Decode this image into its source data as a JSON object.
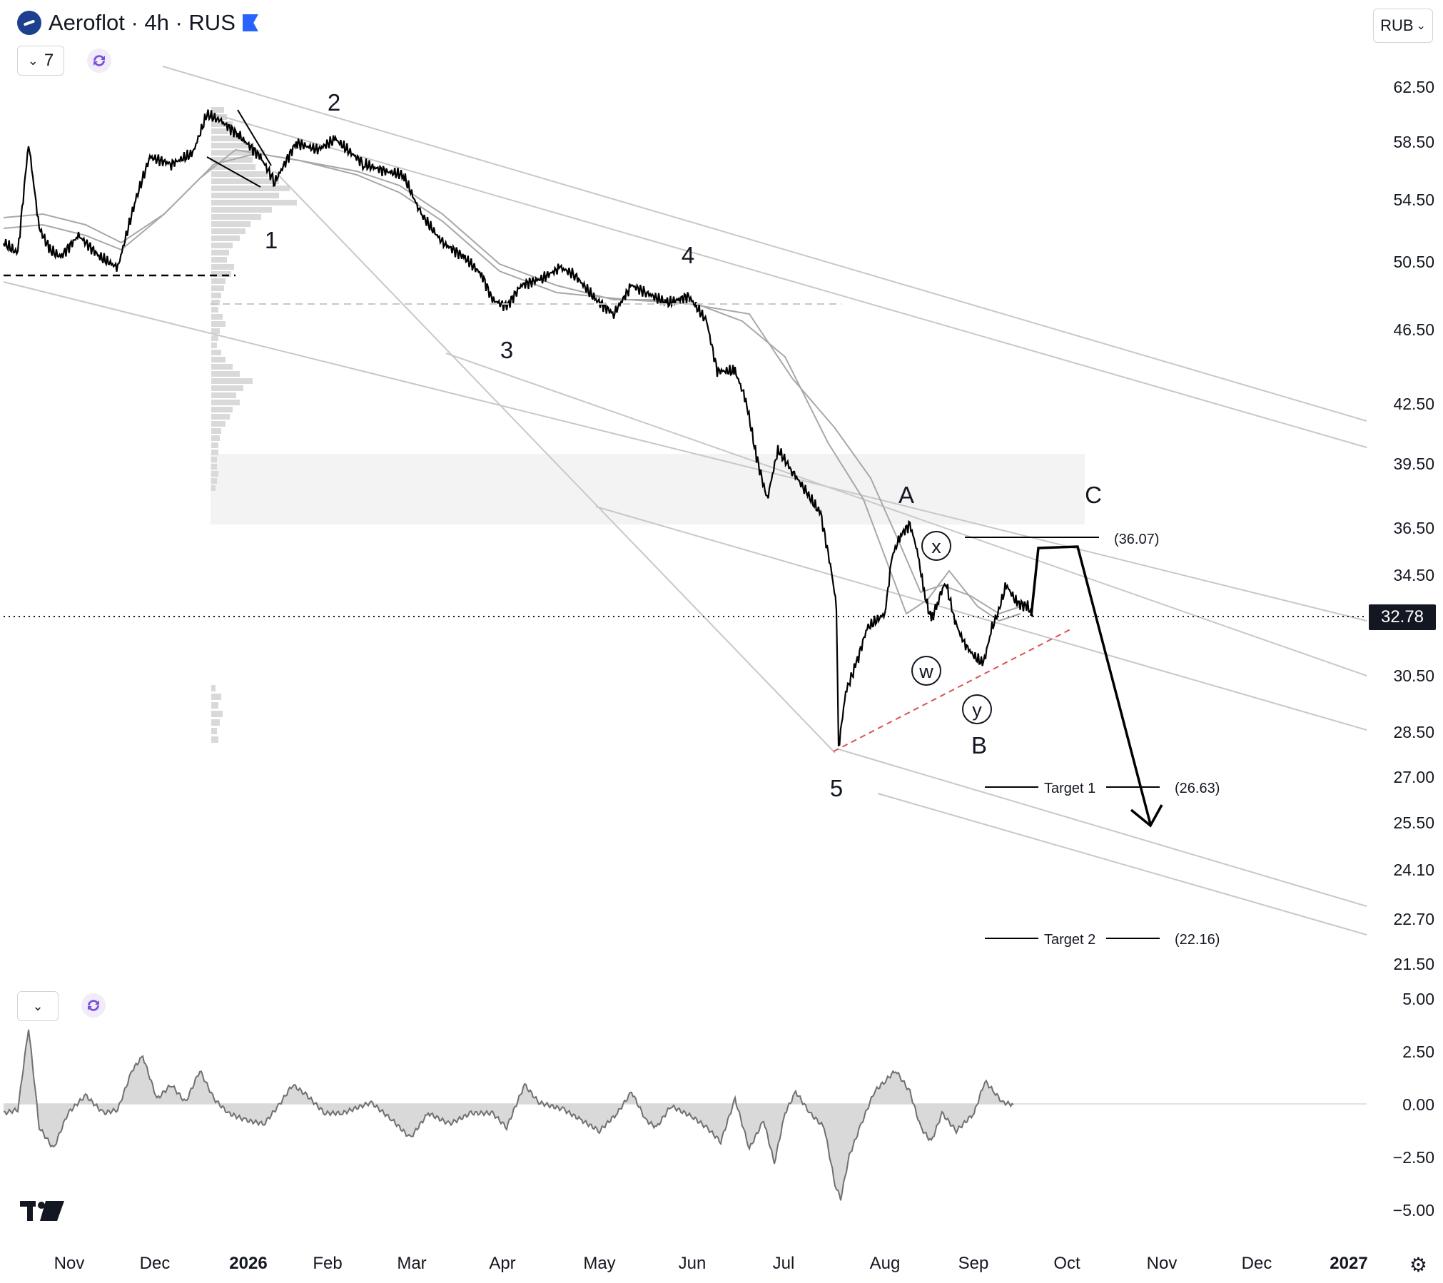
{
  "header": {
    "title": "Aeroflot · 4h · RUS",
    "interval_value": "7",
    "currency": "RUB"
  },
  "price_axis": {
    "labels": [
      "62.50",
      "58.50",
      "54.50",
      "50.50",
      "46.50",
      "42.50",
      "39.50",
      "36.50",
      "34.50",
      "30.50",
      "28.50",
      "27.00",
      "25.50",
      "24.10",
      "22.70",
      "21.50"
    ],
    "current_price": "32.78"
  },
  "oscillator_axis": {
    "labels": [
      "5.00",
      "2.50",
      "0.00",
      "−2.50",
      "−5.00"
    ]
  },
  "time_axis": {
    "labels": [
      "Nov",
      "Dec",
      "2026",
      "Feb",
      "Mar",
      "Apr",
      "May",
      "Jun",
      "Jul",
      "Aug",
      "Sep",
      "Oct",
      "Nov",
      "Dec",
      "2027"
    ]
  },
  "annotations": {
    "wave_labels": [
      "1",
      "2",
      "3",
      "4",
      "5",
      "A",
      "B",
      "C"
    ],
    "sub_wave_labels": [
      "x",
      "w",
      "y"
    ],
    "level_c": "(36.07)",
    "target1_label": "Target 1",
    "target1_value": "(26.63)",
    "target2_label": "Target 2",
    "target2_value": "(22.16)"
  },
  "colors": {
    "price_line": "#000000",
    "channel_lines": "#c8c8c8",
    "zone_fill": "#f3f3f4",
    "target_red_dashed": "#d9534f",
    "current_price_bg": "#131722"
  },
  "icons": {
    "chevron": "chevron-down-icon",
    "sync": "sync-icon",
    "settings": "settings-icon",
    "logo": "tradingview-logo"
  },
  "chart_data": {
    "type": "line",
    "title": "Aeroflot · 4h · RUS",
    "y_range": [
      21.5,
      62.5
    ],
    "x_labels": [
      "Nov",
      "Dec",
      "2026",
      "Feb",
      "Mar",
      "Apr",
      "May",
      "Jun",
      "Jul",
      "Aug",
      "Sep",
      "Oct",
      "Nov",
      "Dec",
      "2027"
    ],
    "series": [
      {
        "name": "",
        "x": [
          "Nov",
          "Dec",
          "2026",
          "Feb",
          "Mar",
          "Apr",
          "May",
          "Jun",
          "Jul",
          "Aug",
          "Sep"
        ],
        "values": [
          51.5,
          55.5,
          60.8,
          57.5,
          54.5,
          47.8,
          49.5,
          48.5,
          38.0,
          35.5,
          32.8
        ]
      }
    ],
    "levels": {
      "C": 36.07,
      "Target 1": 26.63,
      "Target 2": 22.16
    },
    "oscillator_range": [
      -5.0,
      5.0
    ]
  }
}
